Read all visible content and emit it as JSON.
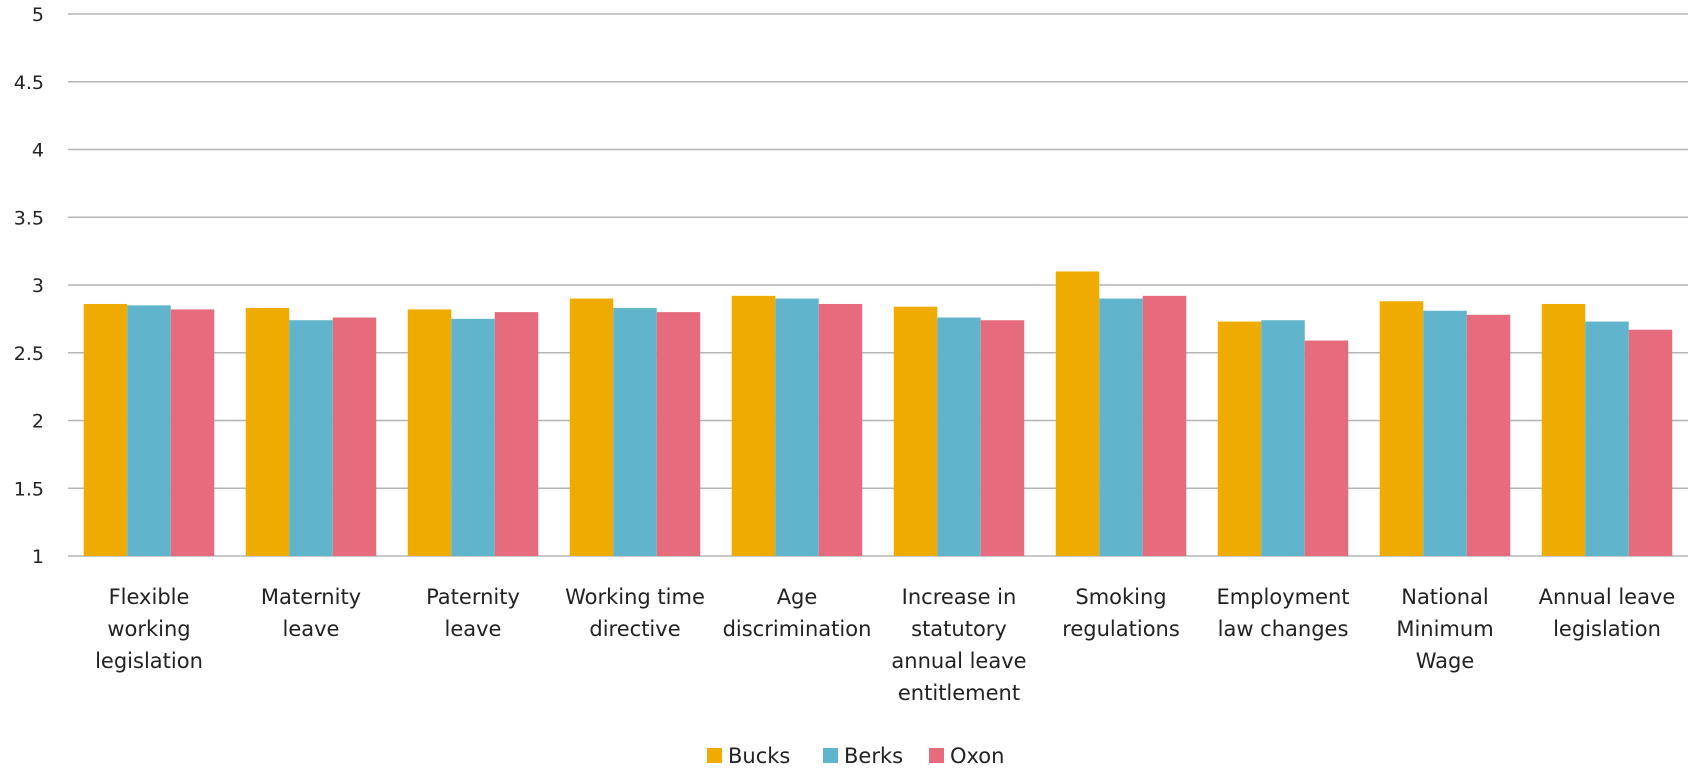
{
  "chart_data": {
    "type": "bar",
    "title": "",
    "xlabel": "",
    "ylabel": "",
    "ylim": [
      1,
      5
    ],
    "yticks": [
      1,
      1.5,
      2,
      2.5,
      3,
      3.5,
      4,
      4.5,
      5
    ],
    "ytick_labels": [
      "1",
      "1.5",
      "2",
      "2.5",
      "3",
      "3.5",
      "4",
      "4.5",
      "5"
    ],
    "grid": true,
    "legend_position": "bottom",
    "categories": [
      [
        "Flexible",
        "working",
        "legislation"
      ],
      [
        "Maternity",
        "leave"
      ],
      [
        "Paternity",
        "leave"
      ],
      [
        "Working time",
        "directive"
      ],
      [
        "Age",
        "discrimination"
      ],
      [
        "Increase in",
        "statutory",
        "annual leave",
        "entitlement"
      ],
      [
        "Smoking",
        "regulations"
      ],
      [
        "Employment",
        "law changes"
      ],
      [
        "National",
        "Minimum",
        "Wage"
      ],
      [
        "Annual leave",
        "legislation"
      ]
    ],
    "series": [
      {
        "name": "Bucks",
        "color": "#F0AB00",
        "values": [
          2.86,
          2.83,
          2.82,
          2.9,
          2.92,
          2.84,
          3.1,
          2.73,
          2.88,
          2.86
        ]
      },
      {
        "name": "Berks",
        "color": "#60B4CB",
        "values": [
          2.85,
          2.74,
          2.75,
          2.83,
          2.9,
          2.76,
          2.9,
          2.74,
          2.81,
          2.73
        ]
      },
      {
        "name": "Oxon",
        "color": "#E66C7D",
        "values": [
          2.82,
          2.76,
          2.8,
          2.8,
          2.86,
          2.74,
          2.92,
          2.59,
          2.78,
          2.67
        ]
      }
    ]
  }
}
